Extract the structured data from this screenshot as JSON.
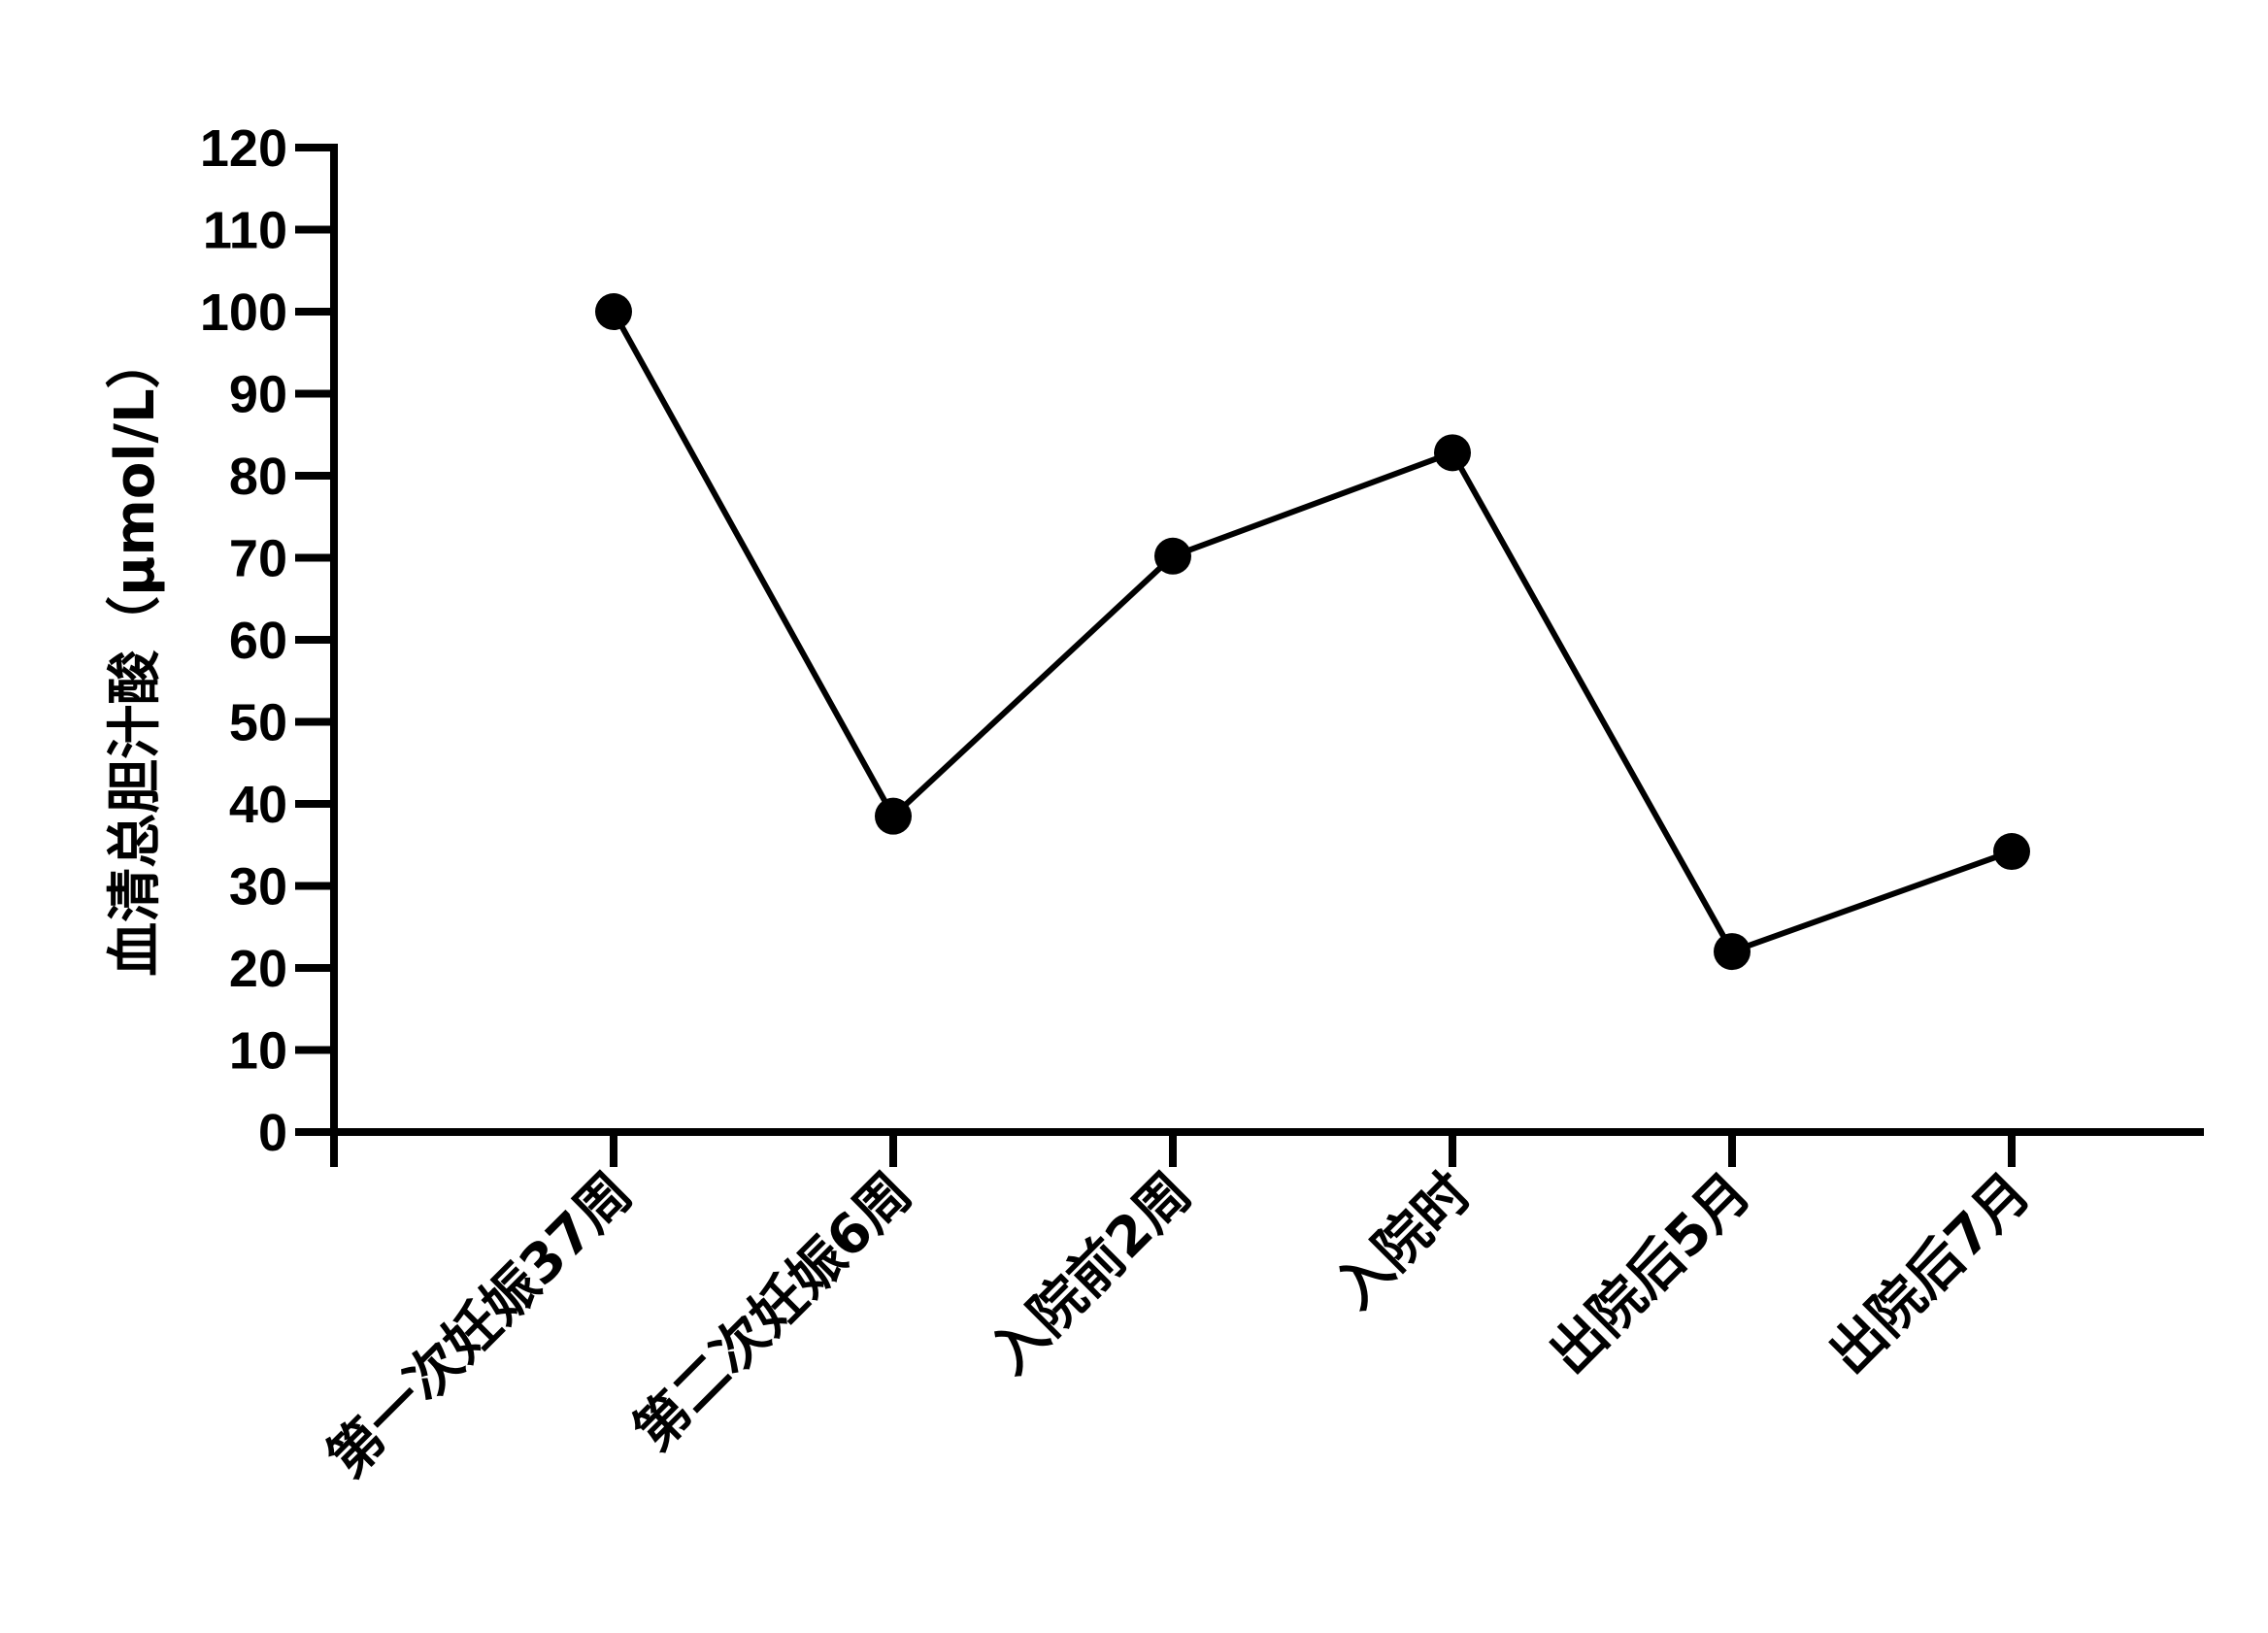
{
  "chart_data": {
    "type": "line",
    "title": "",
    "xlabel": "",
    "ylabel": "血清总胆汁酸（μmol/L）",
    "categories": [
      "第一次妊娠37周",
      "第二次妊娠6周",
      "入院前2周",
      "入院时",
      "出院后5月",
      "出院后7月"
    ],
    "series": [
      {
        "values": [
          100,
          38.5,
          70.2,
          82.8,
          22,
          34.2
        ]
      }
    ],
    "ylim": [
      0,
      120
    ],
    "yticks": [
      0,
      10,
      20,
      30,
      40,
      50,
      60,
      70,
      80,
      90,
      100,
      110,
      120
    ],
    "grid": false,
    "legend": "none",
    "colors": {
      "line": "#000000",
      "marker": "#000000",
      "axis": "#000000"
    }
  }
}
